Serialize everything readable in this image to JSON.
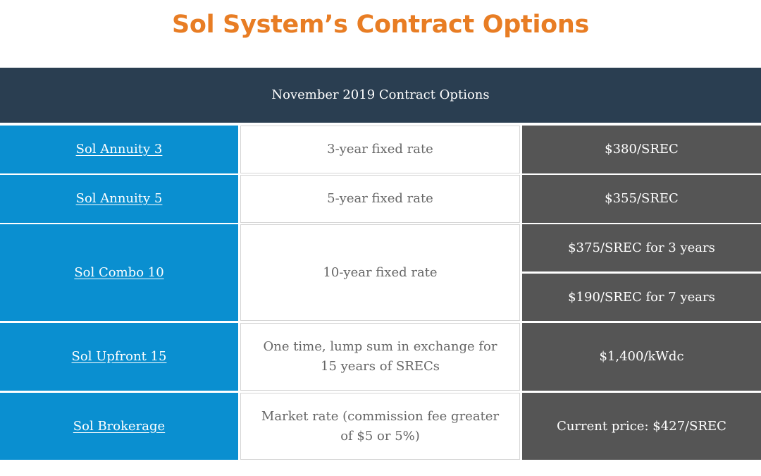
{
  "title": "Sol System’s Contract Options",
  "table": {
    "header": "November 2019 Contract Options",
    "rows": [
      {
        "name": "Sol Annuity 3",
        "description": "3-year fixed rate",
        "prices": [
          "$380/SREC"
        ]
      },
      {
        "name": "Sol Annuity 5",
        "description": "5-year fixed rate",
        "prices": [
          "$355/SREC"
        ]
      },
      {
        "name": "Sol Combo 10",
        "description": "10-year fixed rate",
        "prices": [
          "$375/SREC for 3 years",
          "$190/SREC for 7 years"
        ]
      },
      {
        "name": "Sol Upfront 15",
        "description": "One time, lump sum in exchange for 15 years of SRECs",
        "prices": [
          "$1,400/kWdc"
        ]
      },
      {
        "name": "Sol Brokerage",
        "description": "Market rate (commission fee greater of $5 or 5%)",
        "prices": [
          "Current price: $427/SREC"
        ]
      }
    ]
  },
  "colors": {
    "title": "#e87d24",
    "header_bg": "#2a3e51",
    "name_bg": "#0a8fd0",
    "price_bg": "#555555"
  }
}
